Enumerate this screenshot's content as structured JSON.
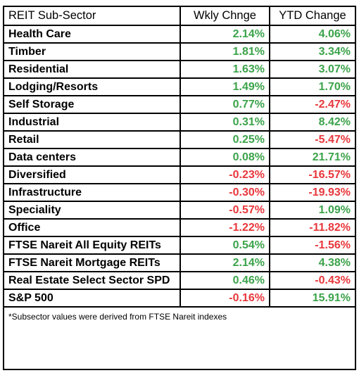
{
  "headers": {
    "sector": "REIT Sub-Sector",
    "weekly": "Wkly Chnge",
    "ytd": "YTD Change"
  },
  "rows": [
    {
      "sector": "Health Care",
      "weekly": "2.14%",
      "ytd": "4.06%"
    },
    {
      "sector": "Timber",
      "weekly": "1.81%",
      "ytd": "3.34%"
    },
    {
      "sector": "Residential",
      "weekly": "1.63%",
      "ytd": "3.07%"
    },
    {
      "sector": "Lodging/Resorts",
      "weekly": "1.49%",
      "ytd": "1.70%"
    },
    {
      "sector": "Self Storage",
      "weekly": "0.77%",
      "ytd": "-2.47%"
    },
    {
      "sector": "Industrial",
      "weekly": "0.31%",
      "ytd": "8.42%"
    },
    {
      "sector": "Retail",
      "weekly": "0.25%",
      "ytd": "-5.47%"
    },
    {
      "sector": "Data centers",
      "weekly": "0.08%",
      "ytd": "21.71%"
    },
    {
      "sector": "Diversified",
      "weekly": "-0.23%",
      "ytd": "-16.57%"
    },
    {
      "sector": "Infrastructure",
      "weekly": "-0.30%",
      "ytd": "-19.93%"
    },
    {
      "sector": "Speciality",
      "weekly": "-0.57%",
      "ytd": "1.09%"
    },
    {
      "sector": "Office",
      "weekly": "-1.22%",
      "ytd": "-11.82%"
    },
    {
      "sector": "FTSE Nareit All Equity REITs",
      "weekly": "0.54%",
      "ytd": "-1.56%"
    },
    {
      "sector": "FTSE Nareit Mortgage REITs",
      "weekly": "2.14%",
      "ytd": "4.38%"
    },
    {
      "sector": "Real Estate Select Sector SPD",
      "weekly": "0.46%",
      "ytd": "-0.43%"
    },
    {
      "sector": "S&P 500",
      "weekly": "-0.16%",
      "ytd": "15.91%"
    }
  ],
  "footnote": "*Subsector values were derived from FTSE Nareit indexes",
  "colors": {
    "positive": "#3ba34a",
    "negative": "#e8373b"
  }
}
